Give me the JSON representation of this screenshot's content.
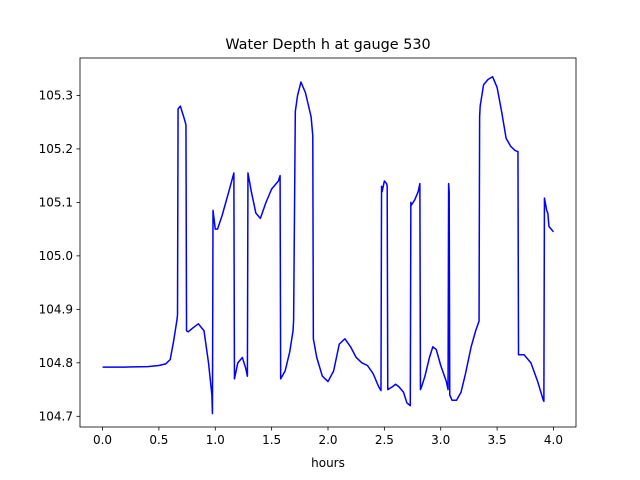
{
  "chart_data": {
    "type": "line",
    "title": "Water Depth h at gauge 530",
    "xlabel": "hours",
    "ylabel": "",
    "xlim": [
      -0.2,
      4.2
    ],
    "ylim": [
      104.68,
      105.37
    ],
    "x_ticks": [
      0.0,
      0.5,
      1.0,
      1.5,
      2.0,
      2.5,
      3.0,
      3.5,
      4.0
    ],
    "x_tick_labels": [
      "0.0",
      "0.5",
      "1.0",
      "1.5",
      "2.0",
      "2.5",
      "3.0",
      "3.5",
      "4.0"
    ],
    "y_ticks": [
      104.7,
      104.8,
      104.9,
      105.0,
      105.1,
      105.2,
      105.3
    ],
    "y_tick_labels": [
      "104.7",
      "104.8",
      "104.9",
      "105.0",
      "105.1",
      "105.2",
      "105.3"
    ],
    "grid": false,
    "legend": "none",
    "color": "#0000ff",
    "series": [
      {
        "x": [
          0.0,
          0.2,
          0.4,
          0.5,
          0.56,
          0.6,
          0.63,
          0.66,
          0.665,
          0.67,
          0.69,
          0.72,
          0.74,
          0.745,
          0.76,
          0.8,
          0.85,
          0.9,
          0.94,
          0.97,
          0.975,
          0.98,
          1.0,
          1.02,
          1.06,
          1.12,
          1.165,
          1.17,
          1.2,
          1.24,
          1.27,
          1.285,
          1.29,
          1.32,
          1.36,
          1.4,
          1.45,
          1.5,
          1.56,
          1.575,
          1.58,
          1.62,
          1.66,
          1.69,
          1.695,
          1.71,
          1.73,
          1.76,
          1.8,
          1.85,
          1.865,
          1.87,
          1.9,
          1.95,
          2.0,
          2.05,
          2.1,
          2.15,
          2.2,
          2.25,
          2.3,
          2.35,
          2.4,
          2.45,
          2.47,
          2.475,
          2.48,
          2.5,
          2.52,
          2.525,
          2.53,
          2.57,
          2.6,
          2.63,
          2.67,
          2.7,
          2.73,
          2.735,
          2.74,
          2.77,
          2.8,
          2.815,
          2.82,
          2.83,
          2.86,
          2.9,
          2.93,
          2.96,
          3.0,
          3.05,
          3.065,
          3.07,
          3.075,
          3.08,
          3.1,
          3.14,
          3.18,
          3.22,
          3.27,
          3.31,
          3.34,
          3.345,
          3.35,
          3.38,
          3.42,
          3.46,
          3.5,
          3.54,
          3.58,
          3.62,
          3.66,
          3.685,
          3.69,
          3.74,
          3.8,
          3.86,
          3.91,
          3.915,
          3.92,
          3.94,
          3.95,
          3.96,
          3.98,
          4.0
        ],
        "y": [
          104.792,
          104.792,
          104.793,
          104.795,
          104.798,
          104.806,
          104.84,
          104.88,
          104.89,
          105.275,
          105.28,
          105.26,
          105.245,
          104.86,
          104.858,
          104.865,
          104.873,
          104.86,
          104.8,
          104.74,
          104.705,
          105.085,
          105.05,
          105.05,
          105.075,
          105.12,
          105.155,
          104.77,
          104.8,
          104.81,
          104.79,
          104.775,
          105.155,
          105.12,
          105.08,
          105.07,
          105.1,
          105.125,
          105.14,
          105.15,
          104.77,
          104.785,
          104.82,
          104.86,
          104.88,
          105.27,
          105.3,
          105.325,
          105.305,
          105.26,
          105.225,
          104.845,
          104.81,
          104.775,
          104.765,
          104.785,
          104.835,
          104.845,
          104.83,
          104.81,
          104.8,
          104.795,
          104.78,
          104.755,
          104.748,
          105.13,
          105.12,
          105.14,
          105.135,
          105.13,
          104.75,
          104.755,
          104.76,
          104.755,
          104.745,
          104.725,
          104.72,
          105.1,
          105.095,
          105.105,
          105.12,
          105.135,
          104.75,
          104.755,
          104.775,
          104.81,
          104.83,
          104.825,
          104.795,
          104.765,
          104.75,
          105.135,
          105.12,
          104.74,
          104.73,
          104.73,
          104.745,
          104.78,
          104.83,
          104.86,
          104.878,
          105.26,
          105.28,
          105.32,
          105.33,
          105.335,
          105.315,
          105.27,
          105.22,
          105.205,
          105.197,
          105.195,
          104.815,
          104.815,
          104.8,
          104.765,
          104.73,
          104.728,
          105.108,
          105.085,
          105.08,
          105.055,
          105.05,
          105.045
        ]
      }
    ]
  }
}
